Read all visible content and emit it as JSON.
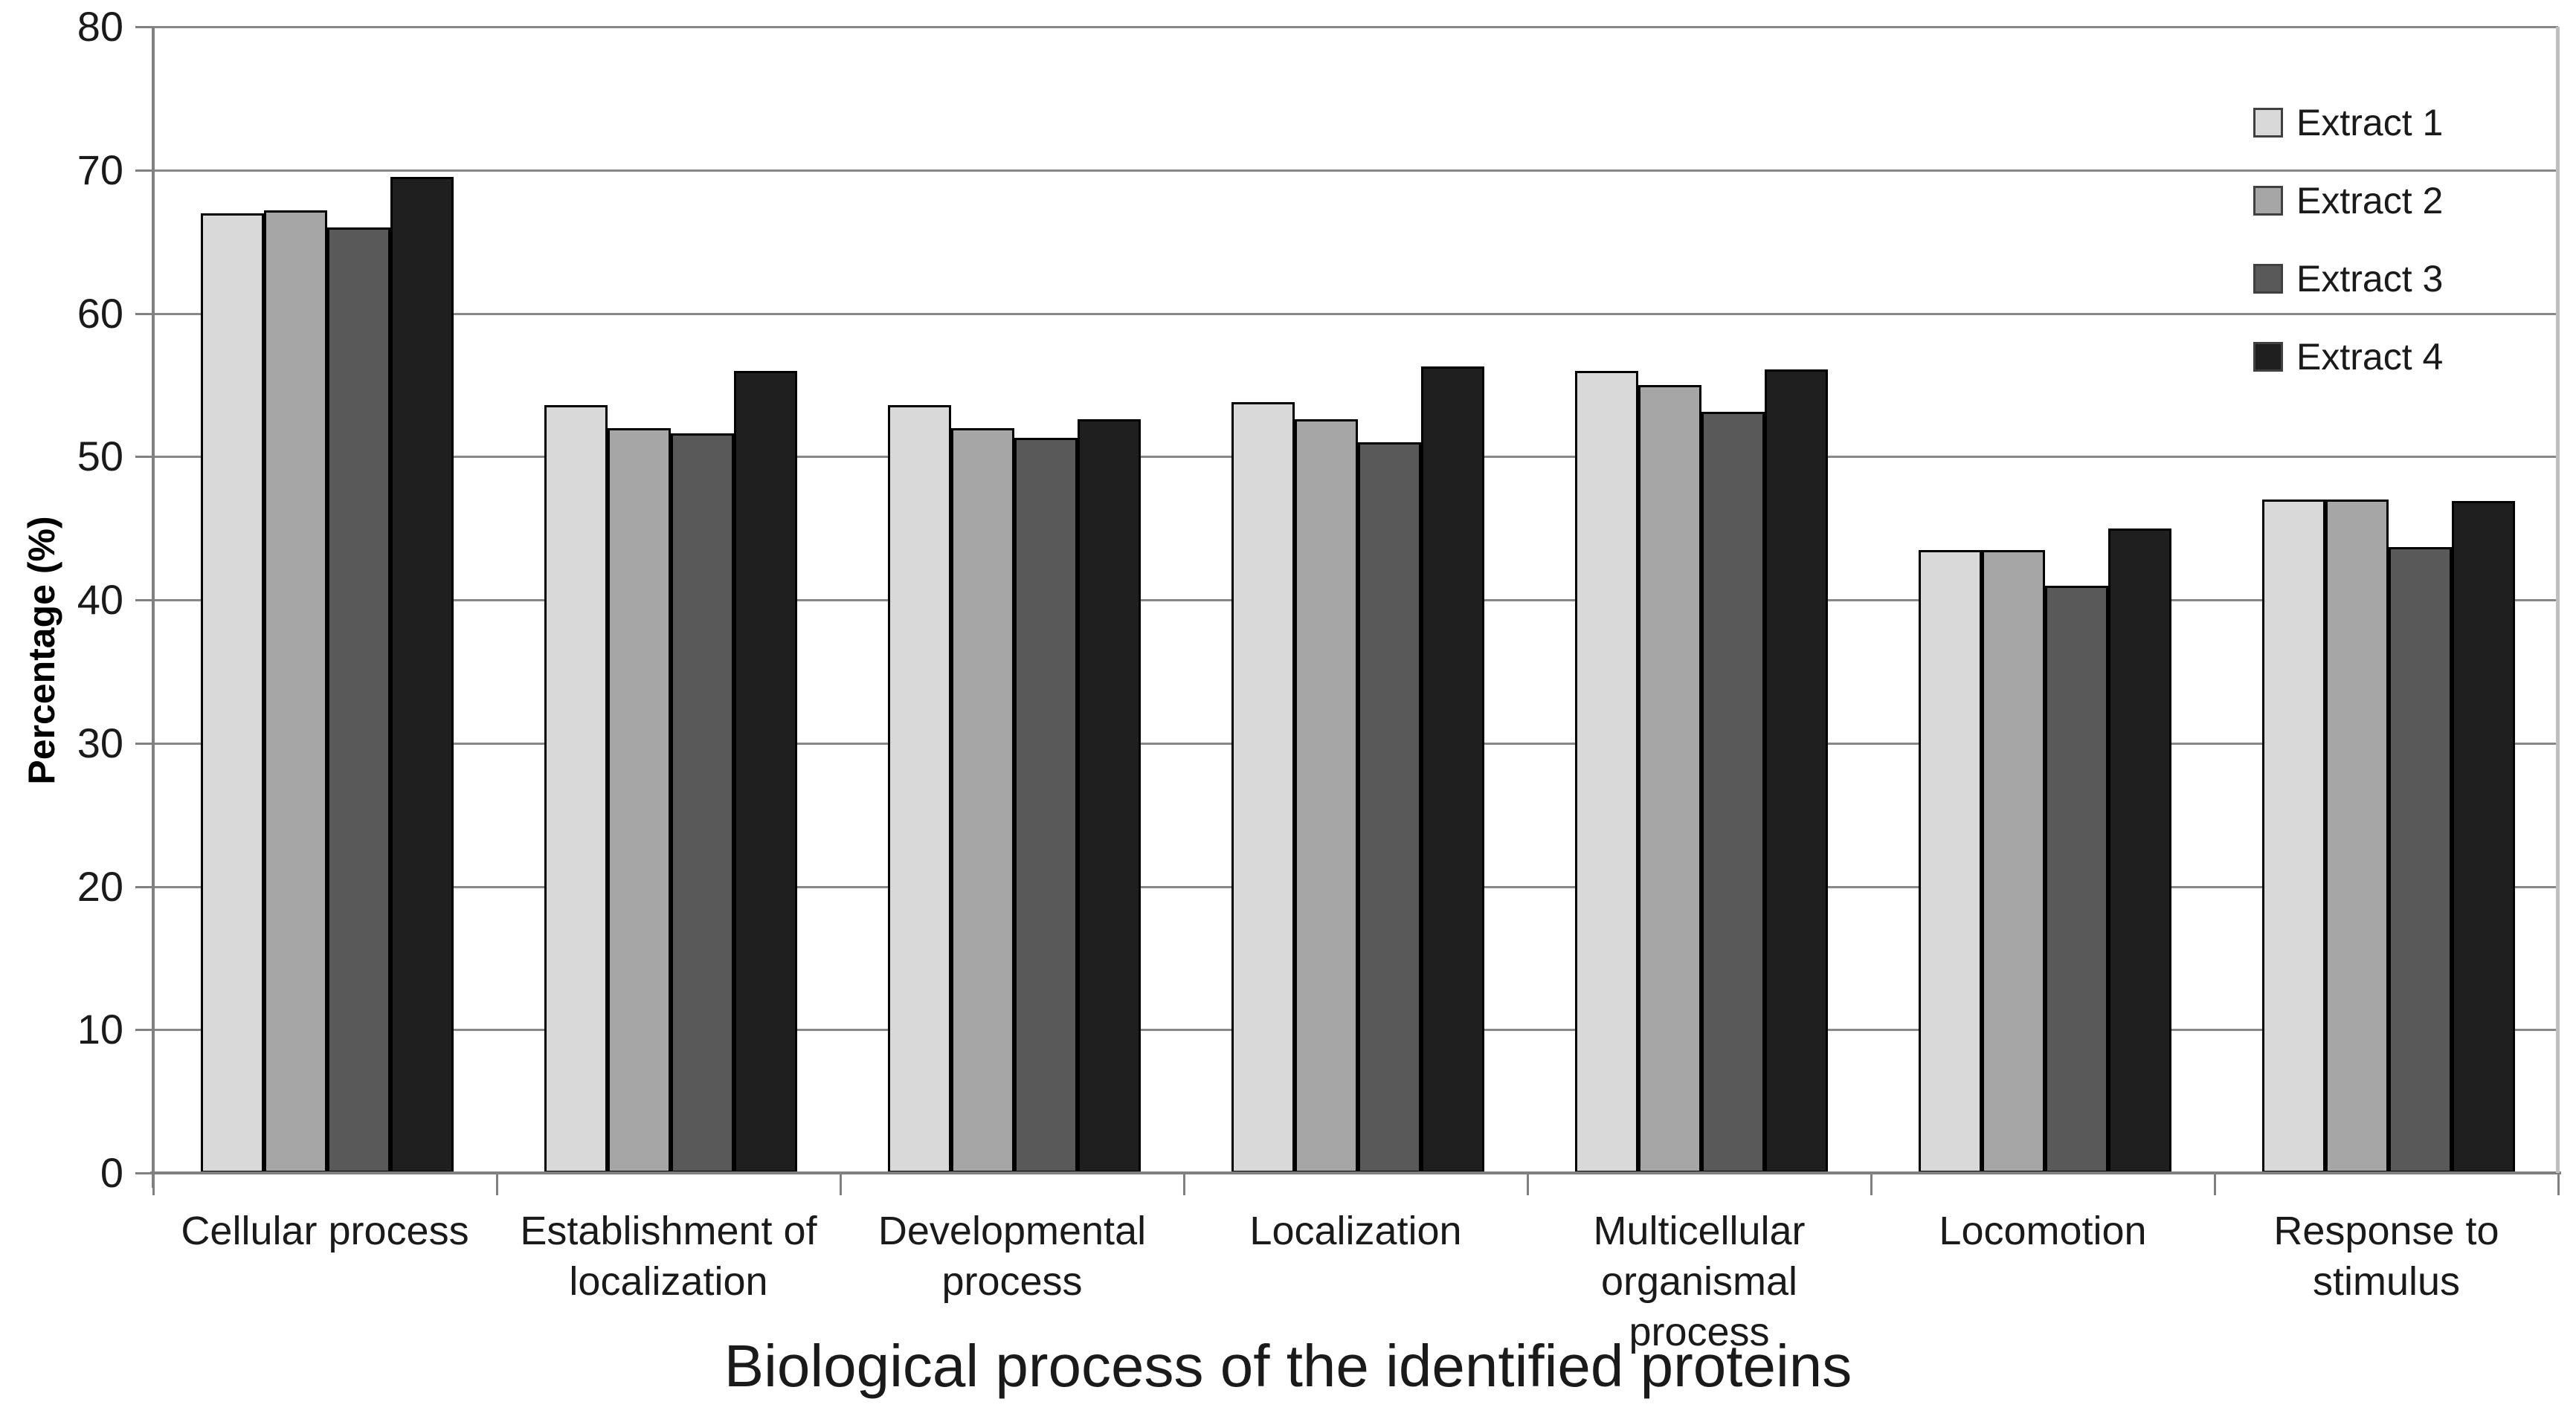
{
  "chart_data": {
    "type": "bar",
    "title": "Biological process of the identified proteins",
    "xlabel": "",
    "ylabel": "Percentage (%)",
    "ylim": [
      0,
      80
    ],
    "yticks": [
      0,
      10,
      20,
      30,
      40,
      50,
      60,
      70,
      80
    ],
    "grid": true,
    "legend_position": "top-right",
    "categories": [
      "Cellular process",
      "Establishment of localization",
      "Developmental process",
      "Localization",
      "Multicellular organismal process",
      "Locomotion",
      "Response to stimulus"
    ],
    "category_label_lines": [
      [
        "Cellular process"
      ],
      [
        "Establishment of",
        "localization"
      ],
      [
        "Developmental",
        "process"
      ],
      [
        "Localization"
      ],
      [
        "Multicellular",
        "organismal process"
      ],
      [
        "Locomotion"
      ],
      [
        "Response to",
        "stimulus"
      ]
    ],
    "series": [
      {
        "name": "Extract 1",
        "color": "#d9d9d9",
        "values": [
          67.0,
          53.6,
          53.6,
          53.8,
          56.0,
          43.5,
          47.0
        ]
      },
      {
        "name": "Extract 2",
        "color": "#a6a6a6",
        "values": [
          67.2,
          52.0,
          52.0,
          52.6,
          55.0,
          43.5,
          47.0
        ]
      },
      {
        "name": "Extract 3",
        "color": "#595959",
        "values": [
          66.0,
          51.6,
          51.3,
          51.0,
          53.1,
          41.0,
          43.7
        ]
      },
      {
        "name": "Extract 4",
        "color": "#1f1f1f",
        "values": [
          69.5,
          56.0,
          52.6,
          56.3,
          56.1,
          45.0,
          46.9
        ]
      }
    ]
  },
  "colors": {
    "gridline": "#878787",
    "axis": "#808080",
    "plot_right_border": "#bfbfbf",
    "bar_border": "#000000",
    "text": "#1a1a1a"
  }
}
